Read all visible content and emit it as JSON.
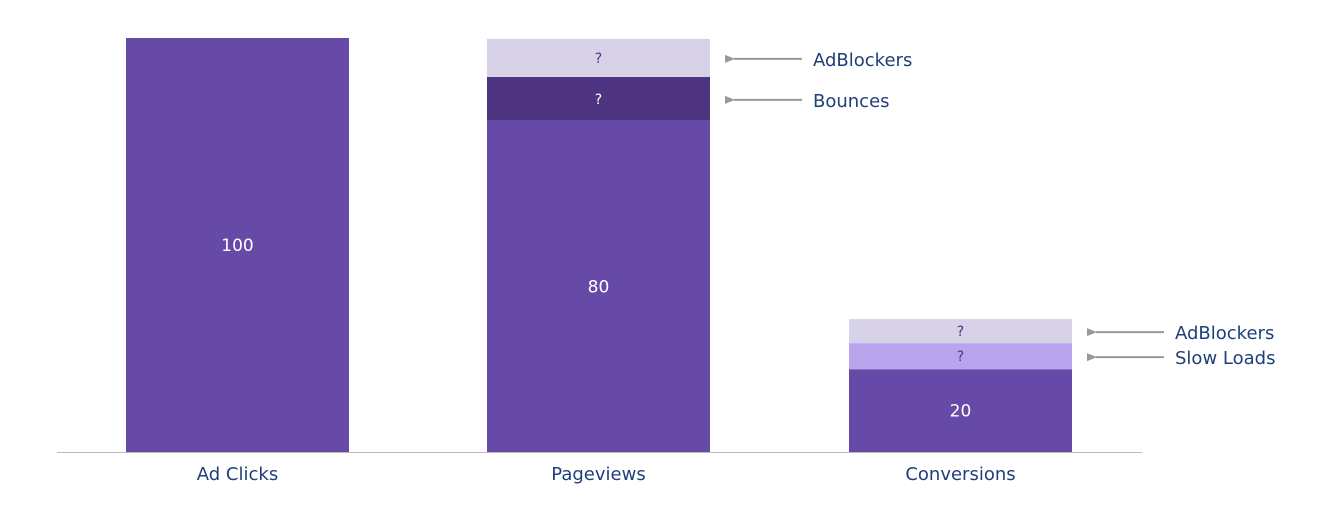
{
  "chart_data": {
    "type": "bar",
    "stacked": true,
    "categories": [
      "Ad Clicks",
      "Pageviews",
      "Conversions"
    ],
    "ylim": [
      0,
      100
    ],
    "grid": false,
    "axes_visible": false,
    "bars": [
      {
        "category": "Ad Clicks",
        "segments": [
          {
            "value": 100,
            "label": "100",
            "color": "#674aa8"
          }
        ]
      },
      {
        "category": "Pageviews",
        "segments": [
          {
            "value": 80,
            "label": "80",
            "color": "#674aa8"
          },
          {
            "value": 10.6,
            "label": "?",
            "color": "#4d3380",
            "annotation": "Bounces"
          },
          {
            "value": 9.2,
            "label": "?",
            "color": "#d8d2e8",
            "annotation": "AdBlockers"
          }
        ]
      },
      {
        "category": "Conversions",
        "segments": [
          {
            "value": 20,
            "label": "20",
            "color": "#674aa8"
          },
          {
            "value": 6.3,
            "label": "?",
            "color": "#b9a5ee",
            "annotation": "Slow Loads"
          },
          {
            "value": 5.8,
            "label": "?",
            "color": "#d8d2e8",
            "annotation": "AdBlockers"
          }
        ]
      }
    ],
    "colors": {
      "text": "#1f3f7a",
      "arrow": "#999999",
      "axis": "#bbbbbb"
    }
  }
}
